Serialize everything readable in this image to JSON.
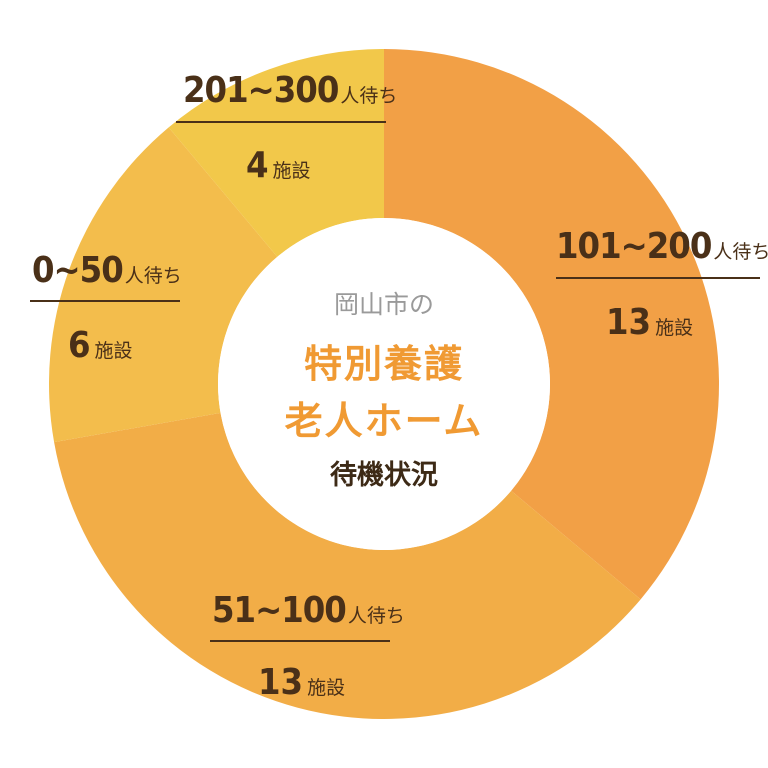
{
  "center": {
    "city": "岡山市の",
    "title_line1": "特別養護",
    "title_line2": "老人ホーム",
    "subtitle": "待機状況"
  },
  "chart_data": {
    "type": "pie",
    "categories": [
      "101~200",
      "51~100",
      "0~50",
      "201~300"
    ],
    "values": [
      13,
      13,
      6,
      4
    ],
    "range_unit": "人待ち",
    "count_unit": "施設",
    "colors": [
      "#f2a046",
      "#f2ad47",
      "#f3bd4c",
      "#f2c84a"
    ]
  }
}
